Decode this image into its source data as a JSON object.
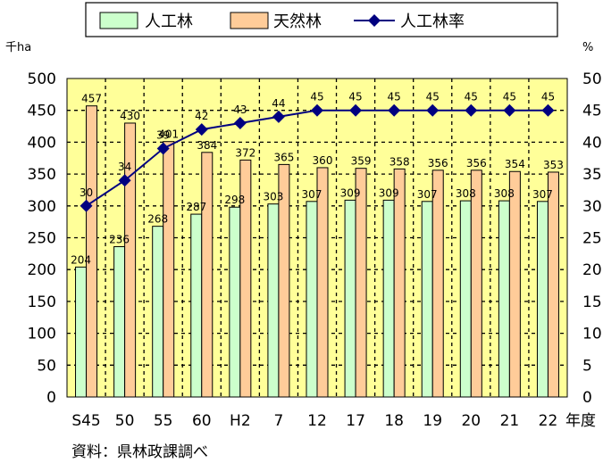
{
  "chart_data": {
    "type": "bar",
    "categories": [
      "S45",
      "50",
      "55",
      "60",
      "H2",
      "7",
      "12",
      "17",
      "18",
      "19",
      "20",
      "21",
      "22"
    ],
    "series": [
      {
        "name": "人工林",
        "type": "bar",
        "axis": "left",
        "color": "#ccffcc",
        "values": [
          204,
          236,
          268,
          287,
          298,
          303,
          307,
          309,
          309,
          307,
          308,
          308,
          307
        ]
      },
      {
        "name": "天然林",
        "type": "bar",
        "axis": "left",
        "color": "#ffcc99",
        "values": [
          457,
          430,
          401,
          384,
          372,
          365,
          360,
          359,
          358,
          356,
          356,
          354,
          353
        ]
      },
      {
        "name": "人工林率",
        "type": "line",
        "axis": "right",
        "color": "#000080",
        "values": [
          30,
          34,
          39,
          42,
          43,
          44,
          45,
          45,
          45,
          45,
          45,
          45,
          45
        ]
      }
    ],
    "y_left": {
      "label": "千ha",
      "min": 0,
      "max": 500,
      "ticks": [
        0,
        50,
        100,
        150,
        200,
        250,
        300,
        350,
        400,
        450,
        500
      ]
    },
    "y_right": {
      "label": "%",
      "min": 0,
      "max": 50,
      "ticks": [
        0,
        5,
        10,
        15,
        20,
        25,
        30,
        35,
        40,
        45,
        50
      ]
    },
    "xlabel": "年度",
    "grid": true,
    "legend_position": "top",
    "plot_background": "#ffff99"
  },
  "source_note": "資料：県林政課調べ"
}
